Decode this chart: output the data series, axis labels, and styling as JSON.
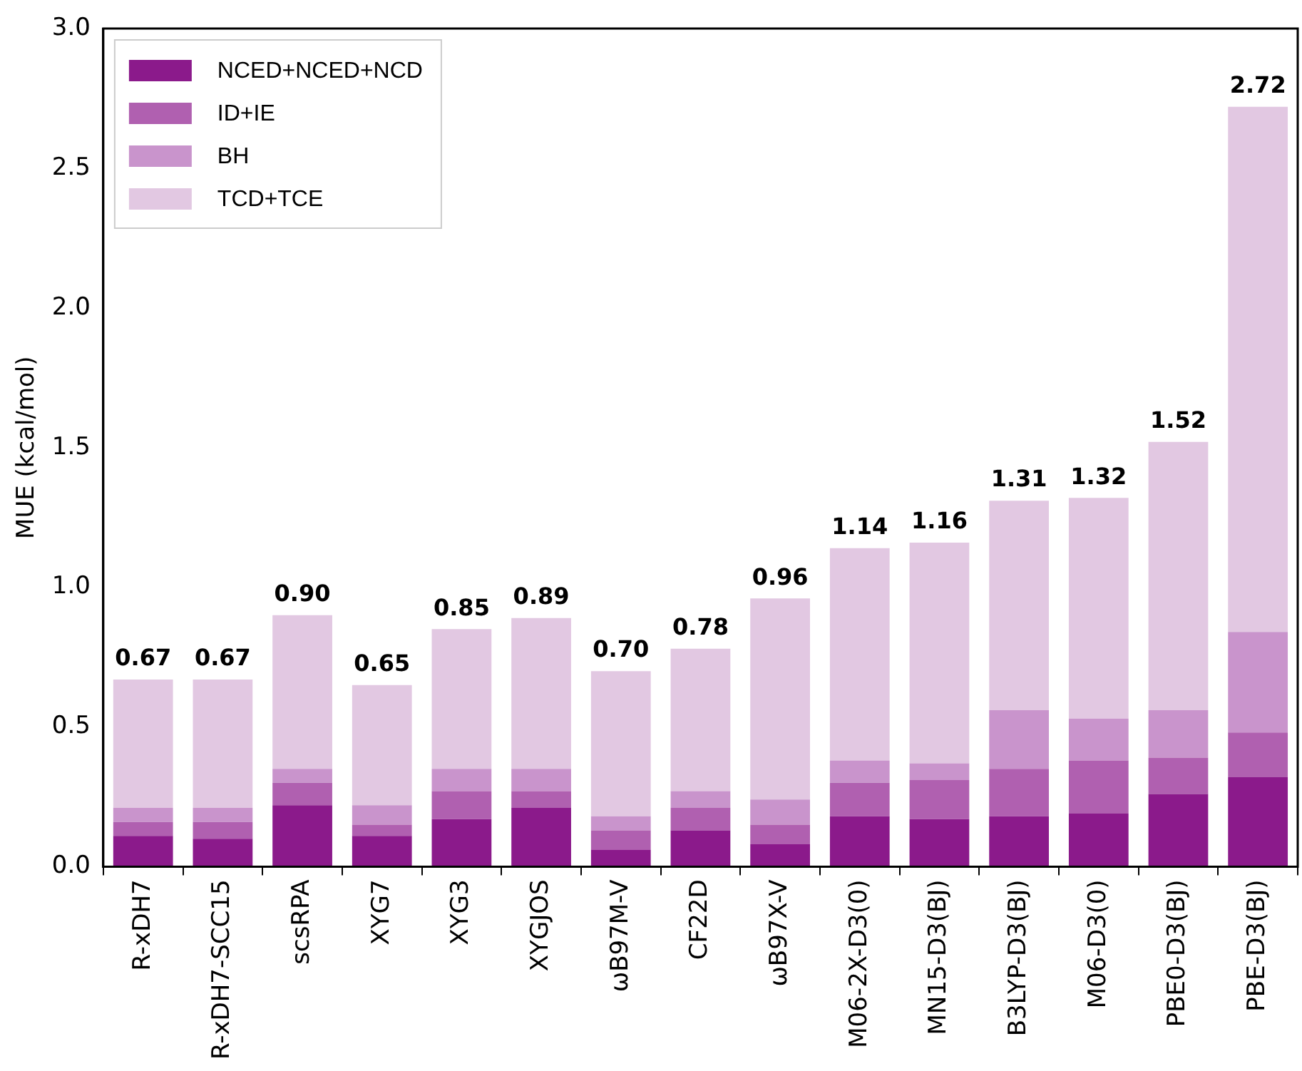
{
  "chart_data": {
    "type": "bar",
    "stacked": true,
    "ylabel": "MUE (kcal/mol)",
    "categories": [
      "R-xDH7",
      "R-xDH7-SCC15",
      "scsRPA",
      "XYG7",
      "XYG3",
      "XYGJOS",
      "ωB97M-V",
      "CF22D",
      "ωB97X-V",
      "M06-2X-D3(0)",
      "MN15-D3(BJ)",
      "B3LYP-D3(BJ)",
      "M06-D3(0)",
      "PBE0-D3(BJ)",
      "PBE-D3(BJ)"
    ],
    "series": [
      {
        "name": "NCED+NCED+NCD",
        "color": "#8b1a8b",
        "values": [
          0.11,
          0.1,
          0.22,
          0.11,
          0.17,
          0.21,
          0.06,
          0.13,
          0.08,
          0.18,
          0.17,
          0.18,
          0.19,
          0.26,
          0.32
        ]
      },
      {
        "name": "ID+IE",
        "color": "#b060b0",
        "values": [
          0.05,
          0.06,
          0.08,
          0.04,
          0.1,
          0.06,
          0.07,
          0.08,
          0.07,
          0.12,
          0.14,
          0.17,
          0.19,
          0.13,
          0.16
        ]
      },
      {
        "name": "BH",
        "color": "#c994cc",
        "values": [
          0.05,
          0.05,
          0.05,
          0.07,
          0.08,
          0.08,
          0.05,
          0.06,
          0.09,
          0.08,
          0.06,
          0.21,
          0.15,
          0.17,
          0.36
        ]
      },
      {
        "name": "TCD+TCE",
        "color": "#e2c8e2",
        "values": [
          0.46,
          0.46,
          0.55,
          0.43,
          0.5,
          0.54,
          0.52,
          0.51,
          0.72,
          0.76,
          0.79,
          0.75,
          0.79,
          0.96,
          1.88
        ]
      }
    ],
    "totals": [
      "0.67",
      "0.67",
      "0.90",
      "0.65",
      "0.85",
      "0.89",
      "0.70",
      "0.78",
      "0.96",
      "1.14",
      "1.16",
      "1.31",
      "1.32",
      "1.52",
      "2.72"
    ],
    "ylim": [
      0,
      3
    ],
    "yticks": [
      {
        "value": 0,
        "label": "0.0"
      },
      {
        "value": 0.5,
        "label": "0.5"
      },
      {
        "value": 1,
        "label": "1.0"
      },
      {
        "value": 1.5,
        "label": "1.5"
      },
      {
        "value": 2,
        "label": "2.0"
      },
      {
        "value": 2.5,
        "label": "2.5"
      },
      {
        "value": 3,
        "label": "3.0"
      }
    ],
    "grid": false,
    "legend": "top left"
  }
}
